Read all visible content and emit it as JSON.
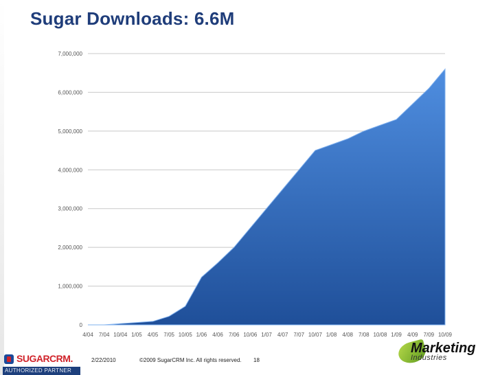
{
  "slide": {
    "title": "Sugar Downloads: 6.6M",
    "footer_date": "2/22/2010",
    "footer_copyright": "©2009 SugarCRM Inc. All rights reserved.",
    "page_number": "18"
  },
  "logos": {
    "sugar_word": "SUGARCRM.",
    "sugar_tagline": "AUTHORIZED PARTNER",
    "mi_word1": "Marketing",
    "mi_word2": "Industries"
  },
  "colors": {
    "title": "#1f3d7a",
    "area_top": "#4f8ee0",
    "area_bottom": "#1f4f99",
    "gridline": "#c8c8c8"
  },
  "chart_data": {
    "type": "area",
    "ylim": [
      0,
      7000000
    ],
    "yticks": [
      0,
      1000000,
      2000000,
      3000000,
      4000000,
      5000000,
      6000000,
      7000000
    ],
    "ytick_labels": [
      "0",
      "1,000,000",
      "2,000,000",
      "3,000,000",
      "4,000,000",
      "5,000,000",
      "6,000,000",
      "7,000,000"
    ],
    "grid": true,
    "xtick_labels": [
      "4/04",
      "7/04",
      "10/04",
      "1/05",
      "4/05",
      "7/05",
      "10/05",
      "1/06",
      "4/06",
      "7/06",
      "10/06",
      "1/07",
      "4/07",
      "7/07",
      "10/07",
      "1/08",
      "4/08",
      "7/08",
      "10/08",
      "1/09",
      "4/09",
      "7/09",
      "10/09"
    ],
    "x": [
      "4/04",
      "7/04",
      "10/04",
      "1/05",
      "4/05",
      "7/05",
      "10/05",
      "1/06",
      "4/06",
      "7/06",
      "10/06",
      "1/07",
      "4/07",
      "7/07",
      "10/07",
      "1/08",
      "4/08",
      "7/08",
      "10/08",
      "1/09",
      "4/09",
      "7/09",
      "10/09"
    ],
    "values": [
      0,
      0,
      30000,
      60000,
      90000,
      220000,
      480000,
      1230000,
      1600000,
      2000000,
      2500000,
      3000000,
      3500000,
      4000000,
      4500000,
      4650000,
      4800000,
      5000000,
      5150000,
      5300000,
      5700000,
      6100000,
      6600000
    ]
  }
}
